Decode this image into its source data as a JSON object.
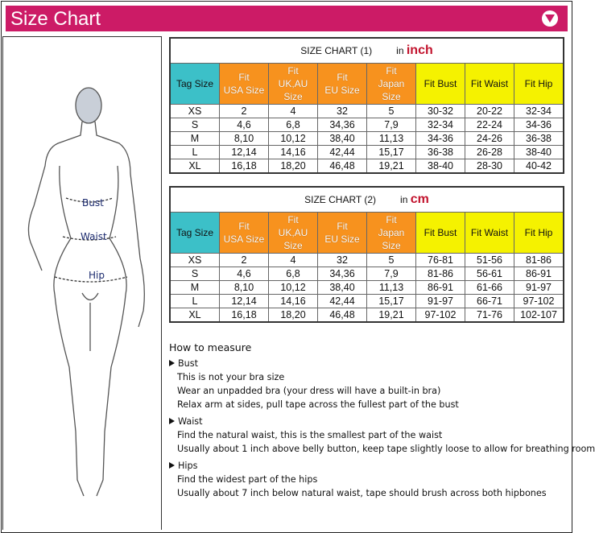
{
  "header": {
    "title": "Size Chart",
    "toggle_icon": "chevron-down-circle-icon",
    "color": "#cc1b66"
  },
  "figure": {
    "labels": {
      "bust": "Bust",
      "waist": "Waist",
      "hip": "Hip"
    }
  },
  "tables": [
    {
      "title": "SIZE CHART (1)",
      "unit_prefix": "in",
      "unit": "inch",
      "headers": [
        "Tag Size",
        "Fit\nUSA Size",
        "Fit\nUK,AU\nSize",
        "Fit\nEU Size",
        "Fit\nJapan\nSize",
        "Fit Bust",
        "Fit Waist",
        "Fit Hip"
      ],
      "rows": [
        [
          "XS",
          "2",
          "4",
          "32",
          "5",
          "30-32",
          "20-22",
          "32-34"
        ],
        [
          "S",
          "4,6",
          "6,8",
          "34,36",
          "7,9",
          "32-34",
          "22-24",
          "34-36"
        ],
        [
          "M",
          "8,10",
          "10,12",
          "38,40",
          "11,13",
          "34-36",
          "24-26",
          "36-38"
        ],
        [
          "L",
          "12,14",
          "14,16",
          "42,44",
          "15,17",
          "36-38",
          "26-28",
          "38-40"
        ],
        [
          "XL",
          "16,18",
          "18,20",
          "46,48",
          "19,21",
          "38-40",
          "28-30",
          "40-42"
        ]
      ]
    },
    {
      "title": "SIZE CHART (2)",
      "unit_prefix": "in",
      "unit": "cm",
      "headers": [
        "Tag Size",
        "Fit\nUSA Size",
        "Fit\nUK,AU\nSize",
        "Fit\nEU Size",
        "Fit\nJapan\nSize",
        "Fit Bust",
        "Fit Waist",
        "Fit Hip"
      ],
      "rows": [
        [
          "XS",
          "2",
          "4",
          "32",
          "5",
          "76-81",
          "51-56",
          "81-86"
        ],
        [
          "S",
          "4,6",
          "6,8",
          "34,36",
          "7,9",
          "81-86",
          "56-61",
          "86-91"
        ],
        [
          "M",
          "8,10",
          "10,12",
          "38,40",
          "11,13",
          "86-91",
          "61-66",
          "91-97"
        ],
        [
          "L",
          "12,14",
          "14,16",
          "42,44",
          "15,17",
          "91-97",
          "66-71",
          "97-102"
        ],
        [
          "XL",
          "16,18",
          "18,20",
          "46,48",
          "19,21",
          "97-102",
          "71-76",
          "102-107"
        ]
      ]
    }
  ],
  "how_to": {
    "title": "How to measure",
    "sections": [
      {
        "name": "Bust",
        "lines": [
          "This is not your bra size",
          "Wear an unpadded bra (your dress will have a built-in bra)",
          "Relax arm at sides, pull tape across the fullest part of the bust"
        ]
      },
      {
        "name": "Waist",
        "lines": [
          "Find the natural waist, this is the smallest part of the waist",
          "Usually about 1 inch above belly button, keep tape slightly loose to allow for breathing room"
        ]
      },
      {
        "name": "Hips",
        "lines": [
          "Find the widest part of the hips",
          "Usually about 7 inch below natural waist, tape should brush across both hipbones"
        ]
      }
    ]
  }
}
